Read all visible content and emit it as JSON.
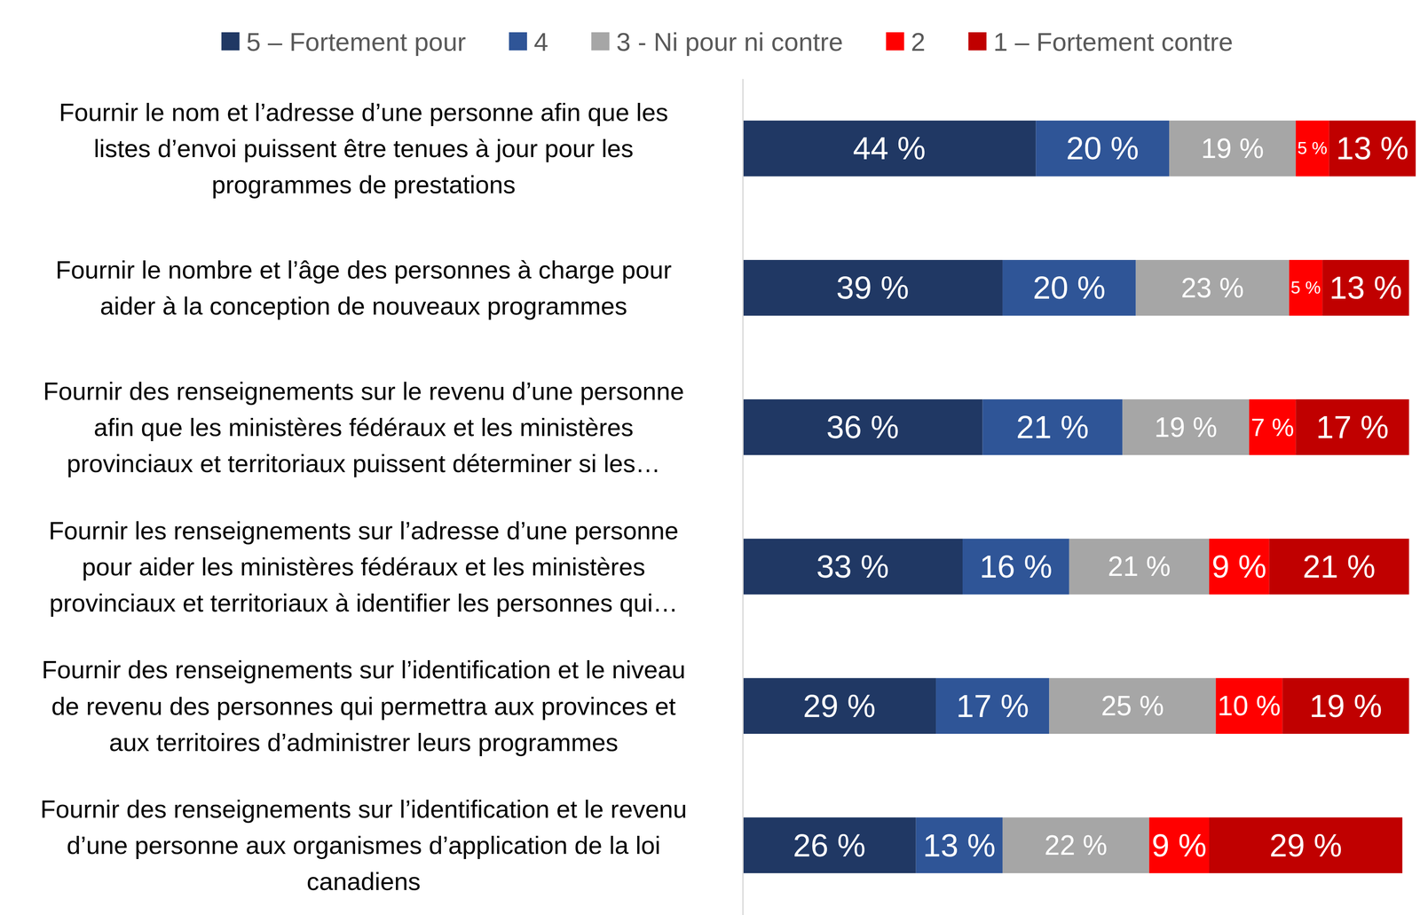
{
  "chart_data": {
    "type": "bar",
    "orientation": "horizontal",
    "stacked": true,
    "data_labels": true,
    "tick_labels": "y",
    "legend": "top",
    "categories": [
      "Fournir le nom et l’adresse d’une personne afin que les\nlistes d’envoi puissent être tenues à jour pour les\nprogrammes de prestations",
      "Fournir le nombre et l’âge des personnes à charge pour\naider à la conception de nouveaux programmes",
      "Fournir des renseignements sur le revenu d’une personne\nafin que les ministères fédéraux et les ministères\nprovinciaux et territoriaux puissent déterminer si les…",
      "Fournir les renseignements sur l’adresse d’une personne\npour aider les ministères fédéraux et les ministères\nprovinciaux et territoriaux à identifier les personnes qui…",
      "Fournir des renseignements sur l’identification et le niveau\nde revenu des personnes qui permettra aux provinces et\naux territoires d’administrer leurs programmes",
      "Fournir des renseignements sur l’identification et le revenu\nd’une personne aux organismes d’application de la loi\ncanadiens"
    ],
    "series": [
      {
        "name": "5 – Fortement pour",
        "color": "#203864",
        "values": [
          44,
          39,
          36,
          33,
          29,
          26
        ],
        "value_labels": [
          "44 %",
          "39 %",
          "36 %",
          "33 %",
          "29 %",
          "26 %"
        ]
      },
      {
        "name": "4",
        "color": "#2f5597",
        "values": [
          20,
          20,
          21,
          16,
          17,
          13
        ],
        "value_labels": [
          "20 %",
          "20 %",
          "21 %",
          "16 %",
          "17 %",
          "13 %"
        ]
      },
      {
        "name": "3 - Ni pour ni contre",
        "color": "#a6a6a6",
        "values": [
          19,
          23,
          19,
          21,
          25,
          22
        ],
        "value_labels": [
          "19 %",
          "23 %",
          "19 %",
          "21 %",
          "25 %",
          "22 %"
        ]
      },
      {
        "name": "2",
        "color": "#ff0000",
        "values": [
          5,
          5,
          7,
          9,
          10,
          9
        ],
        "value_labels": [
          "5 %",
          "5 %",
          "7 %",
          "9 %",
          "10 %",
          "9 %"
        ]
      },
      {
        "name": "1 – Fortement contre",
        "color": "#c00000",
        "values": [
          13,
          13,
          17,
          21,
          19,
          29
        ],
        "value_labels": [
          "13 %",
          "13 %",
          "17 %",
          "21 %",
          "19 %",
          "29 %"
        ]
      }
    ]
  }
}
